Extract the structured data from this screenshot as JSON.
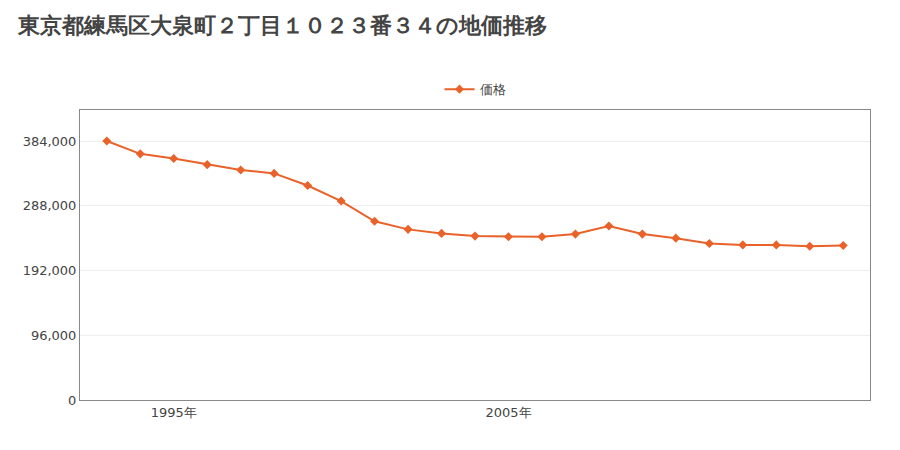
{
  "chart_data": {
    "type": "line",
    "title": "東京都練馬区大泉町２丁目１０２３番３４の地価推移",
    "x": [
      1993,
      1994,
      1995,
      1996,
      1997,
      1998,
      1999,
      2000,
      2001,
      2002,
      2003,
      2004,
      2005,
      2006,
      2007,
      2008,
      2009,
      2010,
      2011,
      2012,
      2013,
      2014,
      2015
    ],
    "series": [
      {
        "name": "価格",
        "color": "#e8622a",
        "marker": "diamond",
        "values": [
          384000,
          365000,
          358000,
          349000,
          341000,
          336000,
          318000,
          295000,
          265000,
          253000,
          247000,
          243000,
          242000,
          242000,
          246000,
          258000,
          246000,
          240000,
          232000,
          230000,
          230000,
          228000,
          229000
        ]
      }
    ],
    "xlim": [
      1992.2,
      2015.8
    ],
    "xticks": [
      {
        "value": 1995,
        "label": "1995年"
      },
      {
        "value": 2005,
        "label": "2005年"
      }
    ],
    "ylim": [
      0,
      430000
    ],
    "yticks": [
      0,
      {
        "value": 96000,
        "label": "96,000"
      },
      {
        "value": 192000,
        "label": "192,000"
      },
      {
        "value": 288000,
        "label": "288,000"
      },
      {
        "value": 384000,
        "label": "384,000"
      }
    ],
    "grid": "y",
    "legend": "top"
  }
}
